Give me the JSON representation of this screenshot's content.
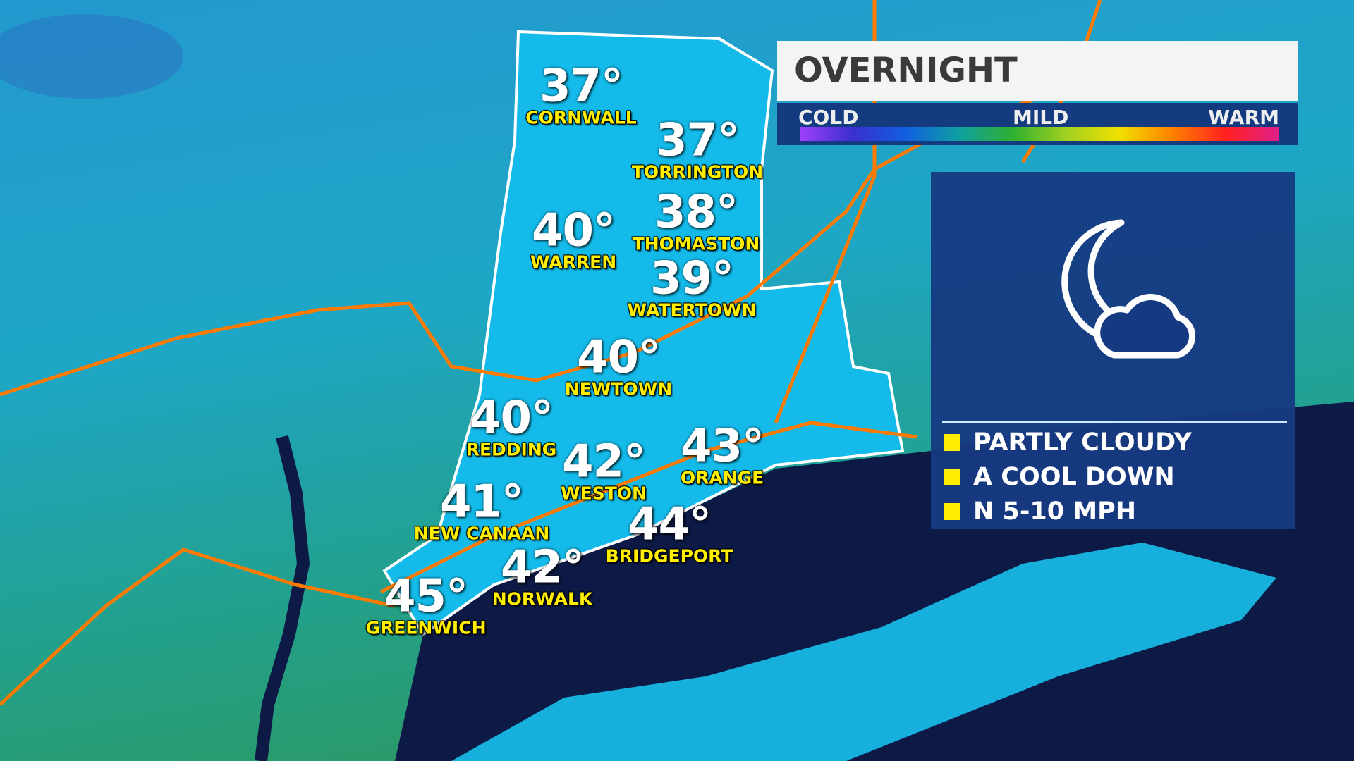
{
  "header": {
    "title": "OVERNIGHT"
  },
  "scale": {
    "cold": "COLD",
    "mild": "MILD",
    "warm": "WARM"
  },
  "conditions": {
    "icon": "moon-cloud-icon",
    "items": [
      "PARTLY CLOUDY",
      "A COOL DOWN",
      "N 5-10 MPH"
    ]
  },
  "cities": [
    {
      "name": "CORNWALL",
      "temp": "37°"
    },
    {
      "name": "TORRINGTON",
      "temp": "37°"
    },
    {
      "name": "WARREN",
      "temp": "40°"
    },
    {
      "name": "THOMASTON",
      "temp": "38°"
    },
    {
      "name": "WATERTOWN",
      "temp": "39°"
    },
    {
      "name": "NEWTOWN",
      "temp": "40°"
    },
    {
      "name": "REDDING",
      "temp": "40°"
    },
    {
      "name": "WESTON",
      "temp": "42°"
    },
    {
      "name": "ORANGE",
      "temp": "43°"
    },
    {
      "name": "NEW CANAAN",
      "temp": "41°"
    },
    {
      "name": "BRIDGEPORT",
      "temp": "44°"
    },
    {
      "name": "NORWALK",
      "temp": "42°"
    },
    {
      "name": "GREENWICH",
      "temp": "45°"
    }
  ],
  "colors": {
    "water": "#0d1a45",
    "land_ct": "#12b8e6",
    "panel": "#163a82",
    "label": "#ffee00",
    "highway": "#ff7a00"
  }
}
